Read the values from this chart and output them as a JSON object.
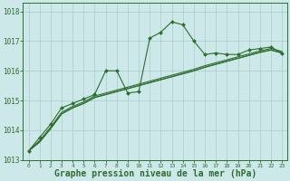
{
  "background_color": "#cce8e8",
  "grid_color": "#aacccc",
  "line_color": "#2d6e2d",
  "marker_color": "#2d6e2d",
  "xlabel": "Graphe pression niveau de la mer (hPa)",
  "xlabel_fontsize": 7,
  "ylim": [
    1013.0,
    1018.3
  ],
  "xlim": [
    -0.5,
    23.5
  ],
  "yticks": [
    1013,
    1014,
    1015,
    1016,
    1017,
    1018
  ],
  "xticks": [
    0,
    1,
    2,
    3,
    4,
    5,
    6,
    7,
    8,
    9,
    10,
    11,
    12,
    13,
    14,
    15,
    16,
    17,
    18,
    19,
    20,
    21,
    22,
    23
  ],
  "series1_x": [
    0,
    1,
    2,
    3,
    4,
    5,
    6,
    7,
    8,
    9,
    10,
    11,
    12,
    13,
    14,
    15,
    16,
    17,
    18,
    19,
    20,
    21,
    22,
    23
  ],
  "series1_y": [
    1013.3,
    1013.75,
    1014.2,
    1014.75,
    1014.9,
    1015.05,
    1015.2,
    1016.0,
    1016.0,
    1015.25,
    1015.3,
    1017.1,
    1017.3,
    1017.65,
    1017.55,
    1017.0,
    1016.55,
    1016.6,
    1016.55,
    1016.55,
    1016.7,
    1016.75,
    1016.8,
    1016.6
  ],
  "series2_x": [
    0,
    1,
    2,
    3,
    4,
    5,
    6,
    7,
    8,
    9,
    10,
    11,
    12,
    13,
    14,
    15,
    16,
    17,
    18,
    19,
    20,
    21,
    22,
    23
  ],
  "series2_y": [
    1013.3,
    1013.6,
    1014.05,
    1014.55,
    1014.75,
    1014.9,
    1015.1,
    1015.2,
    1015.3,
    1015.4,
    1015.5,
    1015.6,
    1015.7,
    1015.8,
    1015.9,
    1016.0,
    1016.12,
    1016.22,
    1016.32,
    1016.42,
    1016.52,
    1016.62,
    1016.7,
    1016.6
  ],
  "series3_x": [
    0,
    1,
    2,
    3,
    4,
    5,
    6,
    7,
    8,
    9,
    10,
    11,
    12,
    13,
    14,
    15,
    16,
    17,
    18,
    19,
    20,
    21,
    22,
    23
  ],
  "series3_y": [
    1013.3,
    1013.6,
    1014.05,
    1014.55,
    1014.75,
    1014.9,
    1015.1,
    1015.2,
    1015.3,
    1015.4,
    1015.5,
    1015.6,
    1015.7,
    1015.8,
    1015.9,
    1016.0,
    1016.12,
    1016.22,
    1016.32,
    1016.42,
    1016.52,
    1016.62,
    1016.7,
    1016.6
  ],
  "series4_x": [
    0,
    1,
    2,
    3,
    4,
    5,
    6,
    7,
    8,
    9,
    10,
    11,
    12,
    13,
    14,
    15,
    16,
    17,
    18,
    19,
    20,
    21,
    22,
    23
  ],
  "series4_y": [
    1013.3,
    1013.65,
    1014.1,
    1014.6,
    1014.8,
    1014.95,
    1015.15,
    1015.25,
    1015.35,
    1015.45,
    1015.55,
    1015.65,
    1015.75,
    1015.85,
    1015.95,
    1016.05,
    1016.17,
    1016.27,
    1016.37,
    1016.47,
    1016.57,
    1016.67,
    1016.75,
    1016.65
  ]
}
